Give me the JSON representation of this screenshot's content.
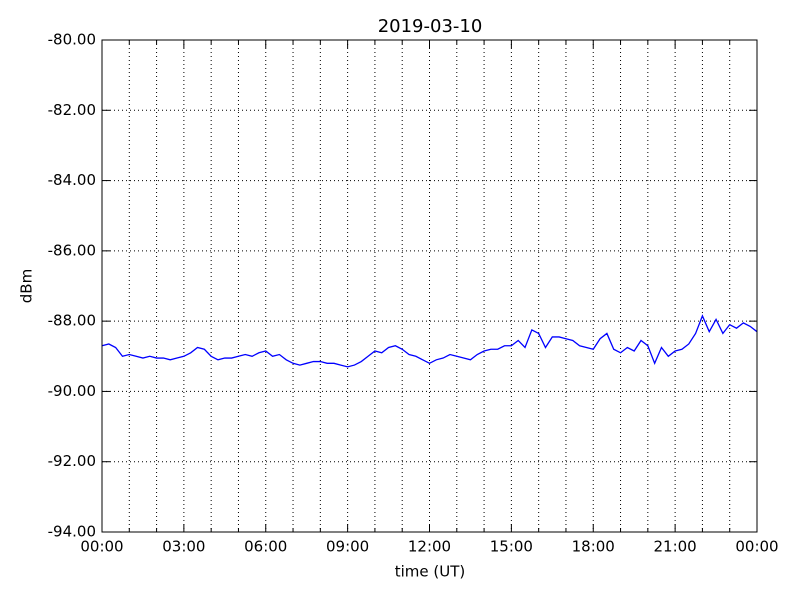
{
  "chart_data": {
    "type": "line",
    "title": "2019-03-10",
    "xlabel": "time (UT)",
    "ylabel": "dBm",
    "xlim": [
      0,
      24
    ],
    "ylim": [
      -94,
      -80
    ],
    "xticks": [
      {
        "value": 0,
        "label": "00:00"
      },
      {
        "value": 3,
        "label": "03:00"
      },
      {
        "value": 6,
        "label": "06:00"
      },
      {
        "value": 9,
        "label": "09:00"
      },
      {
        "value": 12,
        "label": "12:00"
      },
      {
        "value": 15,
        "label": "15:00"
      },
      {
        "value": 18,
        "label": "18:00"
      },
      {
        "value": 21,
        "label": "21:00"
      },
      {
        "value": 24,
        "label": "00:00"
      }
    ],
    "xminorticks": [
      1,
      2,
      4,
      5,
      7,
      8,
      10,
      11,
      13,
      14,
      16,
      17,
      19,
      20,
      22,
      23
    ],
    "yticks": [
      {
        "value": -94,
        "label": "-94.00"
      },
      {
        "value": -92,
        "label": "-92.00"
      },
      {
        "value": -90,
        "label": "-90.00"
      },
      {
        "value": -88,
        "label": "-88.00"
      },
      {
        "value": -86,
        "label": "-86.00"
      },
      {
        "value": -84,
        "label": "-84.00"
      },
      {
        "value": -82,
        "label": "-82.00"
      },
      {
        "value": -80,
        "label": "-80.00"
      }
    ],
    "grid": true,
    "x": [
      0,
      0.25,
      0.5,
      0.75,
      1,
      1.25,
      1.5,
      1.75,
      2,
      2.25,
      2.5,
      2.75,
      3,
      3.25,
      3.5,
      3.75,
      4,
      4.25,
      4.5,
      4.75,
      5,
      5.25,
      5.5,
      5.75,
      6,
      6.25,
      6.5,
      6.75,
      7,
      7.25,
      7.5,
      7.75,
      8,
      8.25,
      8.5,
      8.75,
      9,
      9.25,
      9.5,
      9.75,
      10,
      10.25,
      10.5,
      10.75,
      11,
      11.25,
      11.5,
      11.75,
      12,
      12.25,
      12.5,
      12.75,
      13,
      13.25,
      13.5,
      13.75,
      14,
      14.25,
      14.5,
      14.75,
      15,
      15.25,
      15.5,
      15.75,
      16,
      16.25,
      16.5,
      16.75,
      17,
      17.25,
      17.5,
      17.75,
      18,
      18.25,
      18.5,
      18.75,
      19,
      19.25,
      19.5,
      19.75,
      20,
      20.25,
      20.5,
      20.75,
      21,
      21.25,
      21.5,
      21.75,
      22,
      22.25,
      22.5,
      22.75,
      23,
      23.25,
      23.5,
      23.75,
      24
    ],
    "series": [
      {
        "color": "#0000ff",
        "values": [
          -88.7,
          -88.65,
          -88.75,
          -89.0,
          -88.95,
          -89.0,
          -89.05,
          -89.0,
          -89.05,
          -89.05,
          -89.1,
          -89.05,
          -89.0,
          -88.9,
          -88.75,
          -88.8,
          -89.0,
          -89.1,
          -89.05,
          -89.05,
          -89.0,
          -88.95,
          -89.0,
          -88.9,
          -88.85,
          -89.0,
          -88.95,
          -89.1,
          -89.2,
          -89.25,
          -89.2,
          -89.15,
          -89.15,
          -89.2,
          -89.2,
          -89.25,
          -89.3,
          -89.25,
          -89.15,
          -89.0,
          -88.85,
          -88.9,
          -88.75,
          -88.7,
          -88.8,
          -88.95,
          -89.0,
          -89.1,
          -89.2,
          -89.1,
          -89.05,
          -88.95,
          -89.0,
          -89.05,
          -89.1,
          -88.95,
          -88.85,
          -88.8,
          -88.8,
          -88.7,
          -88.7,
          -88.55,
          -88.75,
          -88.25,
          -88.35,
          -88.75,
          -88.45,
          -88.45,
          -88.5,
          -88.55,
          -88.7,
          -88.75,
          -88.8,
          -88.5,
          -88.35,
          -88.8,
          -88.9,
          -88.75,
          -88.85,
          -88.55,
          -88.7,
          -89.2,
          -88.75,
          -89.0,
          -88.85,
          -88.8,
          -88.65,
          -88.35,
          -87.85,
          -88.3,
          -87.95,
          -88.35,
          -88.1,
          -88.2,
          -88.05,
          -88.15,
          -88.3
        ]
      }
    ]
  }
}
